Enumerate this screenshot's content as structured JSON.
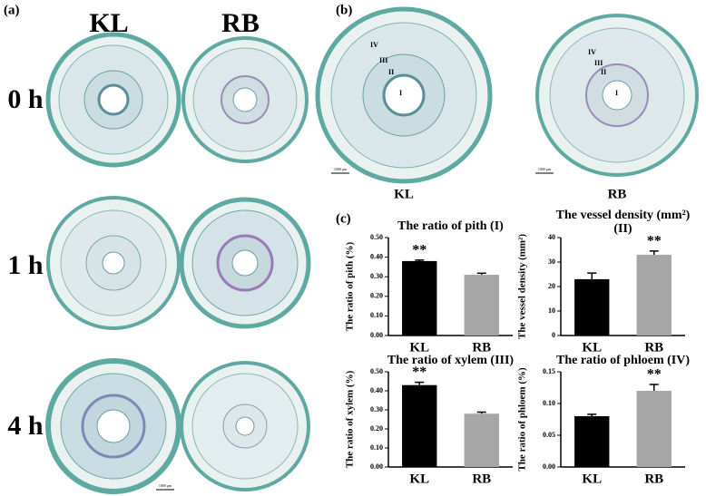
{
  "panels": {
    "a": "(a)",
    "b": "(b)",
    "c": "(c)"
  },
  "micrographs": {
    "columns": [
      "KL",
      "RB"
    ],
    "rows": [
      "0 h",
      "1 h",
      "4 h"
    ],
    "scale_bar": "1000 μm"
  },
  "sections": {
    "labels": [
      "KL",
      "RB"
    ],
    "regions": [
      "I",
      "II",
      "III",
      "IV"
    ],
    "scale_bar": "1000 μm"
  },
  "chart_data": [
    {
      "type": "bar",
      "title": "The ratio of pith (I)",
      "y_label": "The ratio of pith (%)",
      "categories": [
        "KL",
        "RB"
      ],
      "values": [
        0.38,
        0.31
      ],
      "errors": [
        0.005,
        0.008
      ],
      "colors": [
        "#000000",
        "#a6a6a6"
      ],
      "significance": [
        "**",
        null
      ],
      "ylim": [
        0,
        0.5
      ],
      "yticks": [
        {
          "value": 0,
          "label": "0.00"
        },
        {
          "value": 0.1,
          "label": "0.10"
        },
        {
          "value": 0.2,
          "label": "0.20"
        },
        {
          "value": 0.3,
          "label": "0.30"
        },
        {
          "value": 0.4,
          "label": "0.40"
        },
        {
          "value": 0.5,
          "label": "0.50"
        }
      ]
    },
    {
      "type": "bar",
      "title": "The vessel density (mm²)",
      "subtitle": "(II)",
      "y_label": "The vessel density (mm²)",
      "categories": [
        "KL",
        "RB"
      ],
      "values": [
        23,
        33
      ],
      "errors": [
        2.5,
        1.5
      ],
      "colors": [
        "#000000",
        "#a6a6a6"
      ],
      "significance": [
        null,
        "**"
      ],
      "ylim": [
        0,
        40
      ],
      "yticks": [
        0,
        10,
        20,
        30,
        40
      ]
    },
    {
      "type": "bar",
      "title": "The ratio of xylem (III)",
      "y_label": "The ratio of xylem (%)",
      "categories": [
        "KL",
        "RB"
      ],
      "values": [
        0.43,
        0.28
      ],
      "errors": [
        0.015,
        0.008
      ],
      "colors": [
        "#000000",
        "#a6a6a6"
      ],
      "significance": [
        "**",
        null
      ],
      "ylim": [
        0,
        0.5
      ],
      "yticks": [
        {
          "value": 0,
          "label": "0.00"
        },
        {
          "value": 0.1,
          "label": "0.10"
        },
        {
          "value": 0.2,
          "label": "0.20"
        },
        {
          "value": 0.3,
          "label": "0.30"
        },
        {
          "value": 0.4,
          "label": "0.40"
        },
        {
          "value": 0.5,
          "label": "0.50"
        }
      ]
    },
    {
      "type": "bar",
      "title": "The ratio of phloem (IV)",
      "y_label": "The ratio of phloem (%)",
      "categories": [
        "KL",
        "RB"
      ],
      "values": [
        0.08,
        0.12
      ],
      "errors": [
        0.003,
        0.01
      ],
      "colors": [
        "#000000",
        "#a6a6a6"
      ],
      "significance": [
        null,
        "**"
      ],
      "ylim": [
        0,
        0.15
      ],
      "yticks": [
        {
          "value": 0,
          "label": "0.00"
        },
        {
          "value": 0.05,
          "label": "0.05"
        },
        {
          "value": 0.1,
          "label": "0.10"
        },
        {
          "value": 0.15,
          "label": "0.15"
        }
      ]
    }
  ]
}
